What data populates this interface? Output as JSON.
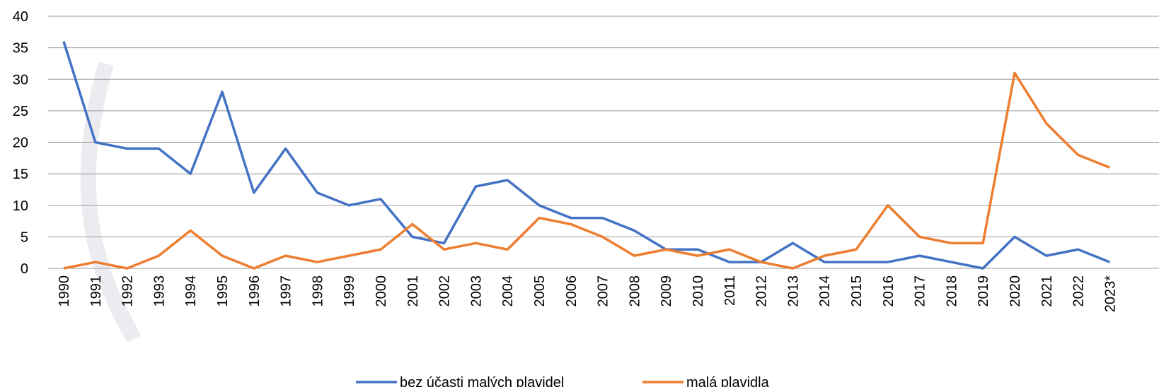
{
  "chart_data": {
    "type": "line",
    "categories": [
      "1990",
      "1991",
      "1992",
      "1993",
      "1994",
      "1995",
      "1996",
      "1997",
      "1998",
      "1999",
      "2000",
      "2001",
      "2002",
      "2003",
      "2004",
      "2005",
      "2006",
      "2007",
      "2008",
      "2009",
      "2010",
      "2011",
      "2012",
      "2013",
      "2014",
      "2015",
      "2016",
      "2017",
      "2018",
      "2019",
      "2020",
      "2021",
      "2022",
      "2023*"
    ],
    "series": [
      {
        "name": "bez účasti malých plavidel",
        "color": "#4472c4",
        "values": [
          36,
          20,
          19,
          19,
          15,
          28,
          12,
          19,
          12,
          10,
          11,
          5,
          4,
          13,
          14,
          10,
          8,
          8,
          6,
          3,
          3,
          1,
          1,
          4,
          1,
          1,
          1,
          2,
          1,
          0,
          5,
          2,
          3,
          1
        ]
      },
      {
        "name": "malá plavidla",
        "color": "#ed7d31",
        "values": [
          0,
          1,
          0,
          2,
          6,
          2,
          0,
          2,
          1,
          2,
          3,
          7,
          3,
          4,
          3,
          8,
          7,
          5,
          2,
          3,
          2,
          3,
          1,
          0,
          2,
          3,
          10,
          5,
          4,
          4,
          31,
          23,
          18,
          16
        ]
      }
    ],
    "ylim": [
      0,
      40
    ],
    "yticks": [
      0,
      5,
      10,
      15,
      20,
      25,
      30,
      35,
      40
    ],
    "grid": true,
    "legend": "bottom"
  }
}
